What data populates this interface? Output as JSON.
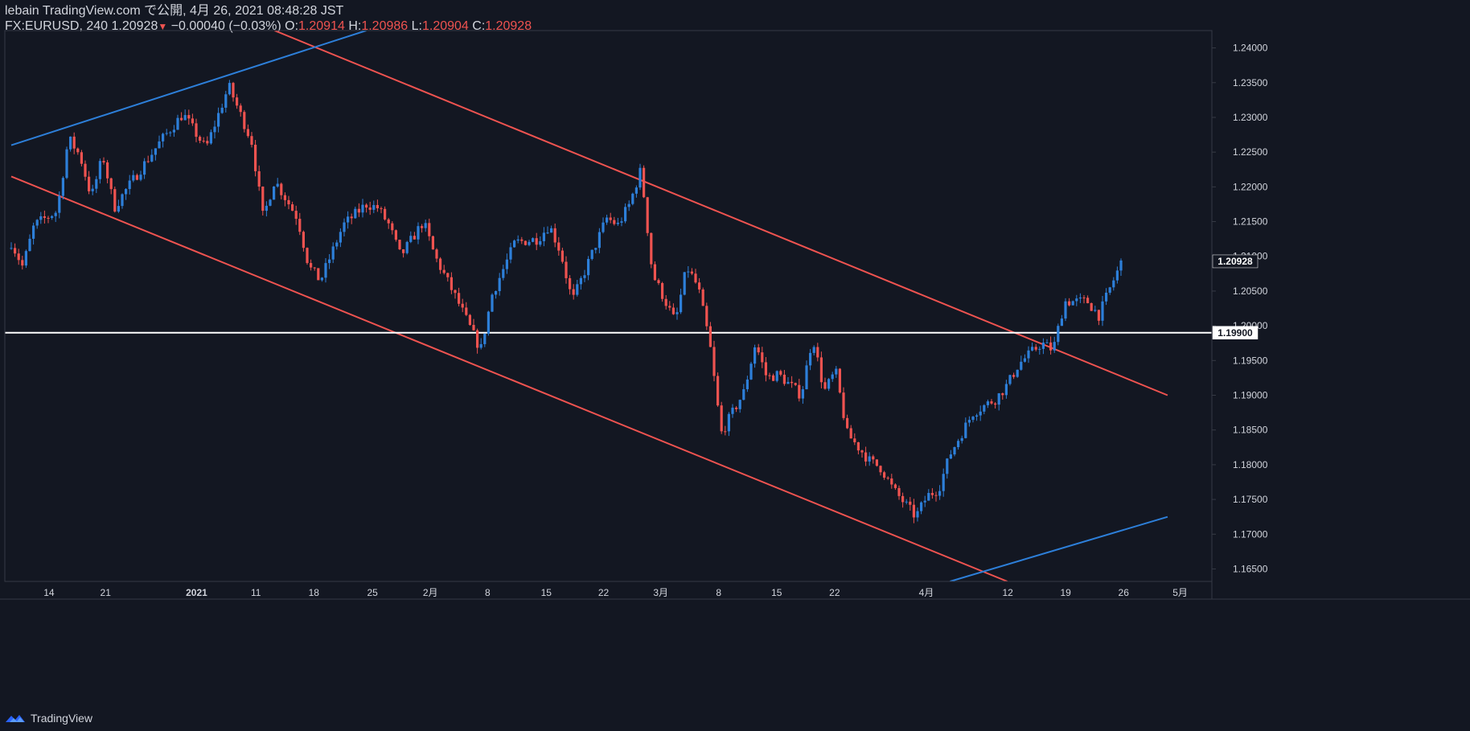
{
  "header": {
    "line1": "lebain TradingView.com で公開, 4月 26, 2021 08:48:28 JST",
    "symbol": "FX:EURUSD, 240",
    "last": "1.20928",
    "change": "−0.00040 (−0.03%)",
    "o_label": "O:",
    "o_value": "1.20914",
    "h_label": "H:",
    "h_value": "1.20986",
    "l_label": "L:",
    "l_value": "1.20904",
    "c_label": "C:",
    "c_value": "1.20928"
  },
  "footer": {
    "brand": "TradingView"
  },
  "colors": {
    "background": "#131722",
    "up": "#2d7fd9",
    "down": "#ef5350",
    "channel": "#ef5350",
    "trend": "#2d7fd9",
    "horizontal": "#ffffff",
    "axis": "#363a45",
    "text": "#d1d4dc"
  },
  "chart_data": {
    "type": "candlestick",
    "symbol": "FX:EURUSD",
    "timeframe": "240",
    "x_tick_labels": [
      "14",
      "21",
      "2021",
      "11",
      "18",
      "25",
      "2月",
      "8",
      "15",
      "22",
      "3月",
      "8",
      "15",
      "22",
      "4月",
      "12",
      "19",
      "26",
      "5月"
    ],
    "y_tick_labels": [
      "1.24000",
      "1.23500",
      "1.23000",
      "1.22500",
      "1.22000",
      "1.21500",
      "1.21000",
      "1.20500",
      "1.20000",
      "1.19500",
      "1.19000",
      "1.18500",
      "1.18000",
      "1.17500",
      "1.17000",
      "1.16500"
    ],
    "ylim": [
      1.1632,
      1.2425
    ],
    "last_price_label": "1.20928",
    "horizontal_line_label": "1.19900",
    "horizontal_line_value": 1.199,
    "price_path": [
      {
        "x": "Dec 10",
        "y": 1.212
      },
      {
        "x": "Dec 11",
        "y": 1.2085
      },
      {
        "x": "Dec 14",
        "y": 1.2145
      },
      {
        "x": "Dec 16",
        "y": 1.2165
      },
      {
        "x": "Dec 17",
        "y": 1.227
      },
      {
        "x": "Dec 18",
        "y": 1.2245
      },
      {
        "x": "Dec 21",
        "y": 1.2185
      },
      {
        "x": "Dec 22",
        "y": 1.2245
      },
      {
        "x": "Dec 23",
        "y": 1.217
      },
      {
        "x": "Dec 24",
        "y": 1.2195
      },
      {
        "x": "Dec 29",
        "y": 1.2265
      },
      {
        "x": "Dec 31",
        "y": 1.2305
      },
      {
        "x": "Jan 4",
        "y": 1.2255
      },
      {
        "x": "Jan 5",
        "y": 1.23
      },
      {
        "x": "Jan 6",
        "y": 1.2345
      },
      {
        "x": "Jan 8",
        "y": 1.2265
      },
      {
        "x": "Jan 11",
        "y": 1.2155
      },
      {
        "x": "Jan 12",
        "y": 1.221
      },
      {
        "x": "Jan 14",
        "y": 1.2155
      },
      {
        "x": "Jan 15",
        "y": 1.2085
      },
      {
        "x": "Jan 18",
        "y": 1.2065
      },
      {
        "x": "Jan 20",
        "y": 1.2145
      },
      {
        "x": "Jan 22",
        "y": 1.2175
      },
      {
        "x": "Jan 25",
        "y": 1.217
      },
      {
        "x": "Jan 26",
        "y": 1.2145
      },
      {
        "x": "Jan 27",
        "y": 1.21
      },
      {
        "x": "Jan 29",
        "y": 1.215
      },
      {
        "x": "Feb 1",
        "y": 1.21
      },
      {
        "x": "Feb 3",
        "y": 1.2035
      },
      {
        "x": "Feb 5",
        "y": 1.1965
      },
      {
        "x": "Feb 8",
        "y": 1.2045
      },
      {
        "x": "Feb 10",
        "y": 1.212
      },
      {
        "x": "Feb 12",
        "y": 1.2125
      },
      {
        "x": "Feb 15",
        "y": 1.2145
      },
      {
        "x": "Feb 16",
        "y": 1.2105
      },
      {
        "x": "Feb 17",
        "y": 1.2035
      },
      {
        "x": "Feb 19",
        "y": 1.2115
      },
      {
        "x": "Feb 22",
        "y": 1.2155
      },
      {
        "x": "Feb 23",
        "y": 1.2145
      },
      {
        "x": "Feb 24",
        "y": 1.2175
      },
      {
        "x": "Feb 25",
        "y": 1.2225
      },
      {
        "x": "Feb 26",
        "y": 1.2075
      },
      {
        "x": "Mar 2",
        "y": 1.2005
      },
      {
        "x": "Mar 3",
        "y": 1.2085
      },
      {
        "x": "Mar 4",
        "y": 1.2055
      },
      {
        "x": "Mar 5",
        "y": 1.1975
      },
      {
        "x": "Mar 8",
        "y": 1.1845
      },
      {
        "x": "Mar 10",
        "y": 1.1905
      },
      {
        "x": "Mar 11",
        "y": 1.1975
      },
      {
        "x": "Mar 12",
        "y": 1.1925
      },
      {
        "x": "Mar 15",
        "y": 1.193
      },
      {
        "x": "Mar 17",
        "y": 1.19
      },
      {
        "x": "Mar 18",
        "y": 1.1985
      },
      {
        "x": "Mar 19",
        "y": 1.1905
      },
      {
        "x": "Mar 22",
        "y": 1.1935
      },
      {
        "x": "Mar 23",
        "y": 1.1845
      },
      {
        "x": "Mar 25",
        "y": 1.1805
      },
      {
        "x": "Mar 26",
        "y": 1.1795
      },
      {
        "x": "Mar 29",
        "y": 1.1765
      },
      {
        "x": "Mar 31",
        "y": 1.1725
      },
      {
        "x": "Apr 1",
        "y": 1.1755
      },
      {
        "x": "Apr 2",
        "y": 1.1765
      },
      {
        "x": "Apr 5",
        "y": 1.1815
      },
      {
        "x": "Apr 7",
        "y": 1.1875
      },
      {
        "x": "Apr 9",
        "y": 1.1895
      },
      {
        "x": "Apr 12",
        "y": 1.1915
      },
      {
        "x": "Apr 13",
        "y": 1.1945
      },
      {
        "x": "Apr 15",
        "y": 1.1975
      },
      {
        "x": "Apr 16",
        "y": 1.1965
      },
      {
        "x": "Apr 19",
        "y": 1.2035
      },
      {
        "x": "Apr 20",
        "y": 1.2035
      },
      {
        "x": "Apr 21",
        "y": 1.2035
      },
      {
        "x": "Apr 22",
        "y": 1.2015
      },
      {
        "x": "Apr 23",
        "y": 1.2055
      },
      {
        "x": "Apr 26",
        "y": 1.2093
      }
    ],
    "trendlines": [
      {
        "color": "channel",
        "from": {
          "x": "Jan 12",
          "y": 1.2425
        },
        "to": {
          "x": "Apr 30",
          "y": 1.19
        }
      },
      {
        "color": "channel",
        "from": {
          "x": "Dec 10",
          "y": 1.2215
        },
        "to": {
          "x": "Apr 12",
          "y": 1.1632
        }
      },
      {
        "color": "trend",
        "from": {
          "x": "Dec 10",
          "y": 1.226
        },
        "to": {
          "x": "Jan 23",
          "y": 1.2425
        }
      },
      {
        "color": "trend",
        "from": {
          "x": "Apr 5",
          "y": 1.1632
        },
        "to": {
          "x": "Apr 30",
          "y": 1.1725
        }
      }
    ]
  }
}
